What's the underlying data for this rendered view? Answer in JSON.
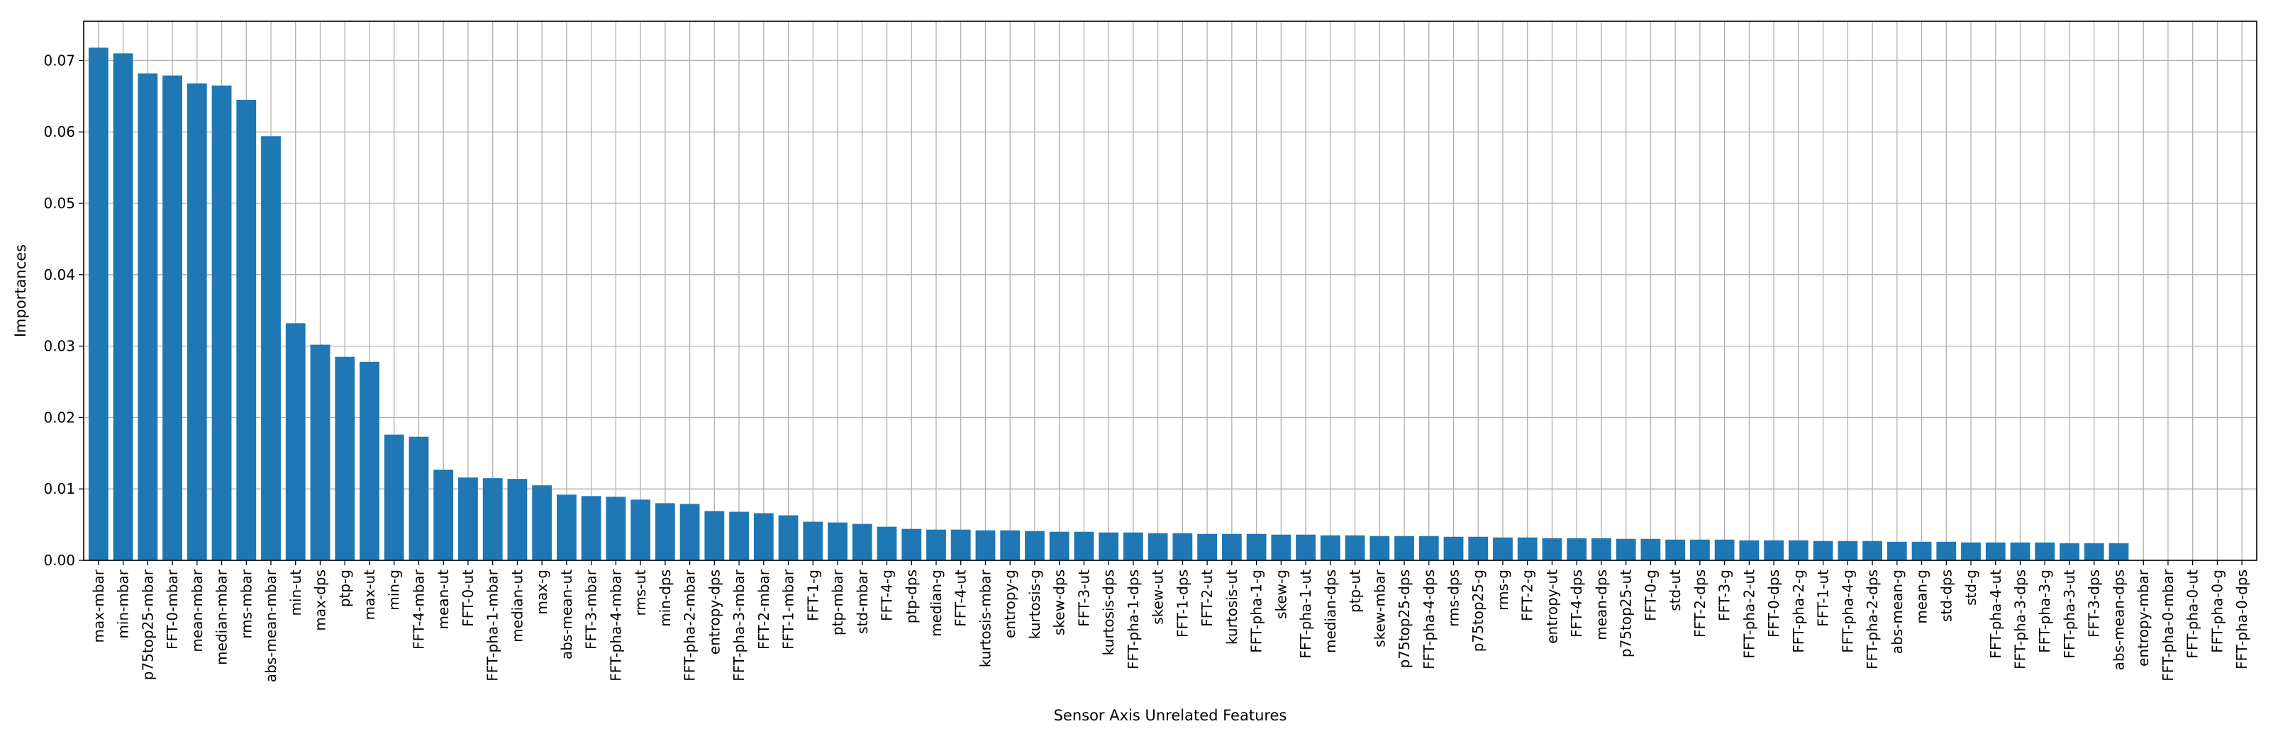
{
  "chart_data": {
    "type": "bar",
    "title": "",
    "xlabel": "Sensor Axis Unrelated Features",
    "ylabel": "Importances",
    "ylim": [
      0,
      0.0755
    ],
    "yticks": [
      "0.00",
      "0.01",
      "0.02",
      "0.03",
      "0.04",
      "0.05",
      "0.06",
      "0.07"
    ],
    "grid": true,
    "bar_color": "#1f77b4",
    "categories": [
      "max-mbar",
      "min-mbar",
      "p75top25-mbar",
      "FFT-0-mbar",
      "mean-mbar",
      "median-mbar",
      "rms-mbar",
      "abs-mean-mbar",
      "min-ut",
      "max-dps",
      "ptp-g",
      "max-ut",
      "min-g",
      "FFT-4-mbar",
      "mean-ut",
      "FFT-0-ut",
      "FFT-pha-1-mbar",
      "median-ut",
      "max-g",
      "abs-mean-ut",
      "FFT-3-mbar",
      "FFT-pha-4-mbar",
      "rms-ut",
      "min-dps",
      "FFT-pha-2-mbar",
      "entropy-dps",
      "FFT-pha-3-mbar",
      "FFT-2-mbar",
      "FFT-1-mbar",
      "FFT-1-g",
      "ptp-mbar",
      "std-mbar",
      "FFT-4-g",
      "ptp-dps",
      "median-g",
      "FFT-4-ut",
      "kurtosis-mbar",
      "entropy-g",
      "kurtosis-g",
      "skew-dps",
      "FFT-3-ut",
      "kurtosis-dps",
      "FFT-pha-1-dps",
      "skew-ut",
      "FFT-1-dps",
      "FFT-2-ut",
      "kurtosis-ut",
      "FFT-pha-1-g",
      "skew-g",
      "FFT-pha-1-ut",
      "median-dps",
      "ptp-ut",
      "skew-mbar",
      "p75top25-dps",
      "FFT-pha-4-dps",
      "rms-dps",
      "p75top25-g",
      "rms-g",
      "FFT-2-g",
      "entropy-ut",
      "FFT-4-dps",
      "mean-dps",
      "p75top25-ut",
      "FFT-0-g",
      "std-ut",
      "FFT-2-dps",
      "FFT-3-g",
      "FFT-pha-2-ut",
      "FFT-0-dps",
      "FFT-pha-2-g",
      "FFT-1-ut",
      "FFT-pha-4-g",
      "FFT-pha-2-dps",
      "abs-mean-g",
      "mean-g",
      "std-dps",
      "std-g",
      "FFT-pha-4-ut",
      "FFT-pha-3-dps",
      "FFT-pha-3-g",
      "FFT-pha-3-ut",
      "FFT-3-dps",
      "abs-mean-dps",
      "entropy-mbar",
      "FFT-pha-0-mbar",
      "FFT-pha-0-ut",
      "FFT-pha-0-g",
      "FFT-pha-0-dps"
    ],
    "values": [
      0.0718,
      0.071,
      0.0682,
      0.0679,
      0.0668,
      0.0665,
      0.0645,
      0.0594,
      0.0332,
      0.0302,
      0.0285,
      0.0278,
      0.0176,
      0.0173,
      0.0127,
      0.0116,
      0.0115,
      0.0114,
      0.0105,
      0.0092,
      0.009,
      0.0089,
      0.0085,
      0.008,
      0.0079,
      0.0069,
      0.0068,
      0.0066,
      0.0063,
      0.0054,
      0.0053,
      0.0051,
      0.0047,
      0.0044,
      0.0043,
      0.0043,
      0.0042,
      0.0042,
      0.0041,
      0.004,
      0.004,
      0.0039,
      0.0039,
      0.0038,
      0.0038,
      0.0037,
      0.0037,
      0.0037,
      0.0036,
      0.0036,
      0.0035,
      0.0035,
      0.0034,
      0.0034,
      0.0034,
      0.0033,
      0.0033,
      0.0032,
      0.0032,
      0.0031,
      0.0031,
      0.0031,
      0.003,
      0.003,
      0.0029,
      0.0029,
      0.0029,
      0.0028,
      0.0028,
      0.0028,
      0.0027,
      0.0027,
      0.0027,
      0.0026,
      0.0026,
      0.0026,
      0.0025,
      0.0025,
      0.0025,
      0.0025,
      0.0024,
      0.0024,
      0.0024,
      0.0,
      0.0,
      0.0,
      0.0,
      0.0
    ]
  }
}
